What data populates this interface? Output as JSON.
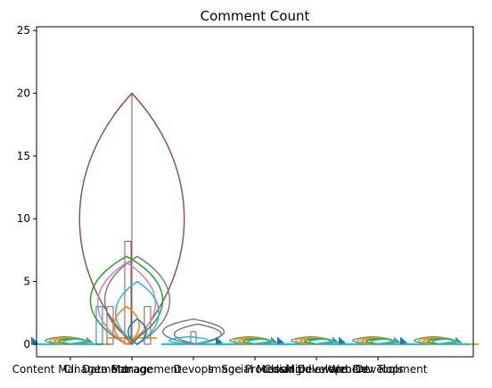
{
  "chart_data": {
    "type": "violin",
    "title": "Comment Count",
    "xlabel": "",
    "ylabel": "",
    "ylim": [
      -1,
      25.3
    ],
    "yticks": [
      0,
      5,
      10,
      15,
      20,
      25
    ],
    "grid": false,
    "categories": [
      "Cli",
      "Content Management",
      "Data Management",
      "Storage",
      "Devops",
      "Image Processing",
      "Social Media",
      "Cloud Development",
      "Middleware",
      "Web Development",
      "Dev Tools"
    ],
    "category_positions": [
      0,
      0,
      1,
      1,
      2,
      3,
      3,
      4,
      4,
      5,
      5
    ],
    "groups": [
      {
        "position": 0,
        "max": 0.6,
        "median": 0
      },
      {
        "position": 1,
        "max": 20,
        "q3": 8.2,
        "median": 0.5
      },
      {
        "position": 2,
        "max": 2,
        "q3": 1,
        "median": 0
      },
      {
        "position": 3,
        "max": 0.6,
        "median": 0
      },
      {
        "position": 4,
        "max": 0.6,
        "median": 0
      },
      {
        "position": 5,
        "max": 0.6,
        "median": 0
      },
      {
        "position": 6,
        "max": 0.6,
        "median": 0
      }
    ],
    "series_colors": [
      "#1f77b4",
      "#ff7f0e",
      "#2ca02c",
      "#d62728",
      "#9467bd",
      "#8c564b",
      "#e377c2",
      "#7f7f7f",
      "#bcbd22",
      "#17becf"
    ]
  }
}
